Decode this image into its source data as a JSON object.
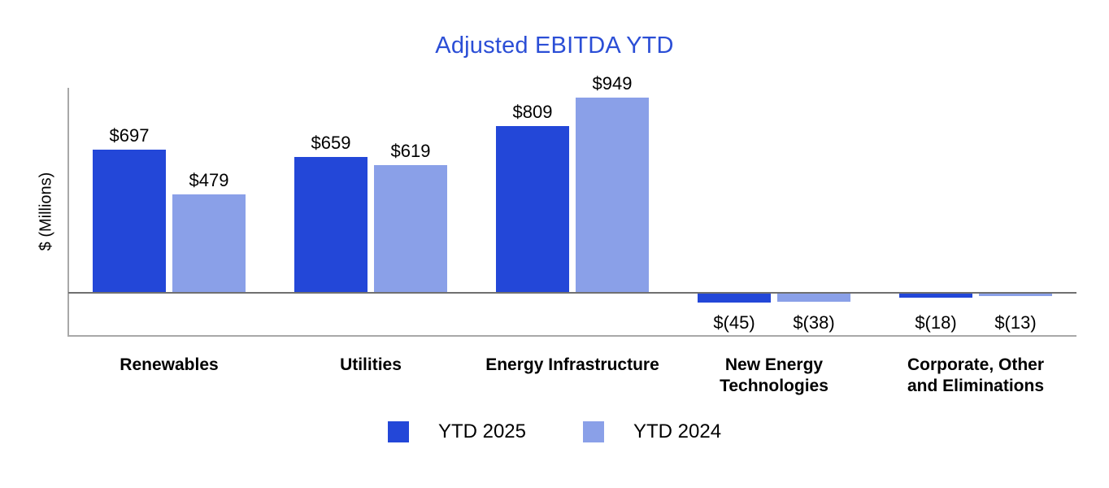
{
  "title": "Adjusted EBITDA YTD",
  "title_color": "#2B4ED6",
  "y_axis_label": "$ (Millions)",
  "axis_color": "#A8A8A8",
  "zero_line_color": "#707070",
  "chart_data": {
    "type": "bar",
    "title": "Adjusted EBITDA YTD",
    "xlabel": "",
    "ylabel": "$ (Millions)",
    "categories": [
      "Renewables",
      "Utilities",
      "Energy Infrastructure",
      "New Energy\nTechnologies",
      "Corporate, Other\nand Eliminations"
    ],
    "series": [
      {
        "name": "YTD 2025",
        "color": "#2347D8",
        "values": [
          697,
          659,
          809,
          -45,
          -18
        ],
        "labels": [
          "$697",
          "$659",
          "$809",
          "$(45)",
          "$(18)"
        ]
      },
      {
        "name": "YTD 2024",
        "color": "#8AA0E8",
        "values": [
          479,
          619,
          949,
          -38,
          -13
        ],
        "labels": [
          "$479",
          "$619",
          "$949",
          "$(38)",
          "$(13)"
        ]
      }
    ],
    "ylim": [
      -200,
      1000
    ],
    "grid": false,
    "legend_position": "bottom",
    "value_labels_shown": true
  }
}
